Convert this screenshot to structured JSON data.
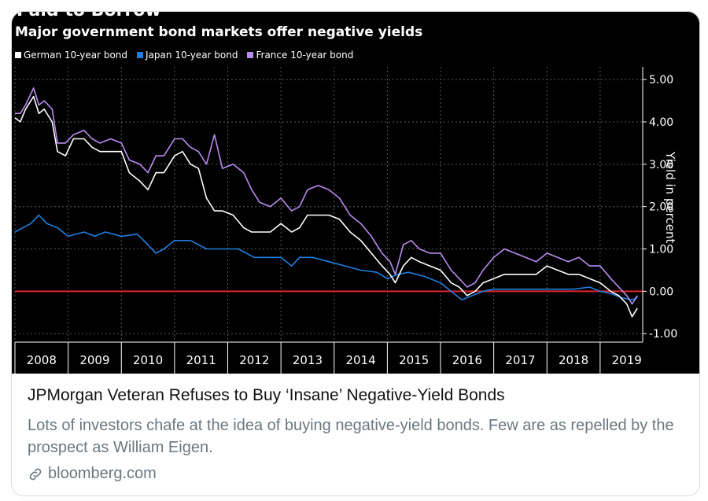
{
  "card": {
    "chart_title_cut": "Paid to Borrow",
    "headline": "JPMorgan Veteran Refuses to Buy ‘Insane’ Negative-Yield Bonds",
    "description": "Lots of investors chafe at the idea of buying negative-yield bonds. Few are as repelled by the prospect as William Eigen.",
    "link_text": "bloomberg.com",
    "link_icon": "link-icon"
  },
  "colors": {
    "background": "#000000",
    "germany": "#ffffff",
    "japan": "#1f7fe0",
    "france": "#b98cf0",
    "zero_line": "#d9262c"
  },
  "chart_data": {
    "type": "line",
    "title": "Paid to Borrow",
    "subtitle": "Major government bond markets offer negative yields",
    "ylabel": "Yield in percent",
    "ylim": [
      -1.2,
      5.3
    ],
    "yticks": [
      "5.00",
      "4.00",
      "3.00",
      "2.00",
      "1.00",
      "0.00",
      "-1.00"
    ],
    "ytick_values": [
      5,
      4,
      3,
      2,
      1,
      0,
      -1
    ],
    "xticks": [
      "2008",
      "2009",
      "2010",
      "2011",
      "2012",
      "2013",
      "2014",
      "2015",
      "2016",
      "2017",
      "2018",
      "2019"
    ],
    "xlim": [
      2008,
      2019.8
    ],
    "zero_line": 0,
    "grid": true,
    "legend_position": "top-left",
    "series": [
      {
        "name": "German 10-year bond",
        "color": "#ffffff",
        "x": [
          2008.0,
          2008.1,
          2008.2,
          2008.35,
          2008.45,
          2008.55,
          2008.7,
          2008.8,
          2008.95,
          2009.1,
          2009.3,
          2009.45,
          2009.6,
          2009.8,
          2010.0,
          2010.15,
          2010.35,
          2010.5,
          2010.65,
          2010.8,
          2011.0,
          2011.15,
          2011.3,
          2011.45,
          2011.6,
          2011.75,
          2011.9,
          2012.1,
          2012.3,
          2012.45,
          2012.6,
          2012.8,
          2013.0,
          2013.2,
          2013.35,
          2013.5,
          2013.7,
          2013.9,
          2014.1,
          2014.3,
          2014.5,
          2014.7,
          2014.9,
          2015.05,
          2015.15,
          2015.3,
          2015.45,
          2015.6,
          2015.8,
          2016.0,
          2016.2,
          2016.35,
          2016.5,
          2016.65,
          2016.8,
          2017.0,
          2017.2,
          2017.4,
          2017.6,
          2017.8,
          2018.0,
          2018.2,
          2018.4,
          2018.6,
          2018.8,
          2019.0,
          2019.2,
          2019.35,
          2019.5,
          2019.6,
          2019.7
        ],
        "values": [
          4.1,
          4.0,
          4.3,
          4.6,
          4.2,
          4.3,
          4.0,
          3.3,
          3.2,
          3.6,
          3.6,
          3.4,
          3.3,
          3.3,
          3.3,
          2.8,
          2.6,
          2.4,
          2.8,
          2.8,
          3.2,
          3.3,
          3.0,
          2.9,
          2.2,
          1.9,
          1.9,
          1.8,
          1.5,
          1.4,
          1.4,
          1.4,
          1.6,
          1.4,
          1.5,
          1.8,
          1.8,
          1.8,
          1.7,
          1.4,
          1.2,
          0.9,
          0.6,
          0.4,
          0.2,
          0.6,
          0.8,
          0.7,
          0.6,
          0.5,
          0.2,
          0.1,
          -0.1,
          0.0,
          0.2,
          0.3,
          0.4,
          0.4,
          0.4,
          0.4,
          0.6,
          0.5,
          0.4,
          0.4,
          0.3,
          0.2,
          0.0,
          -0.1,
          -0.3,
          -0.6,
          -0.4
        ]
      },
      {
        "name": "Japan 10-year bond",
        "color": "#1f7fe0",
        "x": [
          2008.0,
          2008.15,
          2008.3,
          2008.45,
          2008.6,
          2008.8,
          2009.0,
          2009.3,
          2009.5,
          2009.7,
          2010.0,
          2010.3,
          2010.5,
          2010.65,
          2010.8,
          2011.0,
          2011.3,
          2011.6,
          2011.9,
          2012.2,
          2012.5,
          2012.8,
          2013.0,
          2013.2,
          2013.35,
          2013.6,
          2013.9,
          2014.2,
          2014.5,
          2014.8,
          2015.0,
          2015.2,
          2015.4,
          2015.7,
          2016.0,
          2016.2,
          2016.4,
          2016.6,
          2016.8,
          2017.0,
          2017.3,
          2017.6,
          2017.9,
          2018.2,
          2018.5,
          2018.8,
          2019.0,
          2019.2,
          2019.4,
          2019.6,
          2019.7
        ],
        "values": [
          1.4,
          1.5,
          1.6,
          1.8,
          1.6,
          1.5,
          1.3,
          1.4,
          1.3,
          1.4,
          1.3,
          1.35,
          1.1,
          0.9,
          1.0,
          1.2,
          1.2,
          1.0,
          1.0,
          1.0,
          0.8,
          0.8,
          0.8,
          0.6,
          0.8,
          0.8,
          0.7,
          0.6,
          0.5,
          0.45,
          0.3,
          0.4,
          0.45,
          0.35,
          0.2,
          0.0,
          -0.2,
          -0.1,
          0.0,
          0.05,
          0.05,
          0.05,
          0.05,
          0.05,
          0.05,
          0.1,
          0.0,
          -0.05,
          -0.15,
          -0.2,
          -0.15
        ]
      },
      {
        "name": "France 10-year bond",
        "color": "#b98cf0",
        "x": [
          2008.0,
          2008.1,
          2008.2,
          2008.35,
          2008.45,
          2008.55,
          2008.7,
          2008.8,
          2008.95,
          2009.1,
          2009.3,
          2009.45,
          2009.6,
          2009.8,
          2010.0,
          2010.15,
          2010.35,
          2010.5,
          2010.65,
          2010.8,
          2011.0,
          2011.15,
          2011.3,
          2011.45,
          2011.6,
          2011.75,
          2011.9,
          2012.1,
          2012.3,
          2012.45,
          2012.6,
          2012.8,
          2013.0,
          2013.2,
          2013.35,
          2013.5,
          2013.7,
          2013.9,
          2014.1,
          2014.3,
          2014.5,
          2014.7,
          2014.9,
          2015.05,
          2015.15,
          2015.3,
          2015.45,
          2015.6,
          2015.8,
          2016.0,
          2016.2,
          2016.35,
          2016.5,
          2016.65,
          2016.8,
          2017.0,
          2017.2,
          2017.4,
          2017.6,
          2017.8,
          2018.0,
          2018.2,
          2018.4,
          2018.6,
          2018.8,
          2019.0,
          2019.2,
          2019.35,
          2019.5,
          2019.6,
          2019.7
        ],
        "values": [
          4.2,
          4.2,
          4.4,
          4.8,
          4.4,
          4.5,
          4.3,
          3.5,
          3.5,
          3.7,
          3.8,
          3.6,
          3.5,
          3.6,
          3.5,
          3.1,
          3.0,
          2.8,
          3.2,
          3.2,
          3.6,
          3.6,
          3.4,
          3.3,
          3.0,
          3.7,
          2.9,
          3.0,
          2.8,
          2.4,
          2.1,
          2.0,
          2.2,
          1.9,
          2.0,
          2.4,
          2.5,
          2.4,
          2.2,
          1.8,
          1.6,
          1.3,
          0.9,
          0.7,
          0.4,
          1.1,
          1.2,
          1.0,
          0.9,
          0.9,
          0.5,
          0.3,
          0.1,
          0.2,
          0.5,
          0.8,
          1.0,
          0.9,
          0.8,
          0.7,
          0.9,
          0.8,
          0.7,
          0.8,
          0.6,
          0.6,
          0.3,
          0.1,
          -0.1,
          -0.3,
          -0.1
        ]
      }
    ]
  }
}
